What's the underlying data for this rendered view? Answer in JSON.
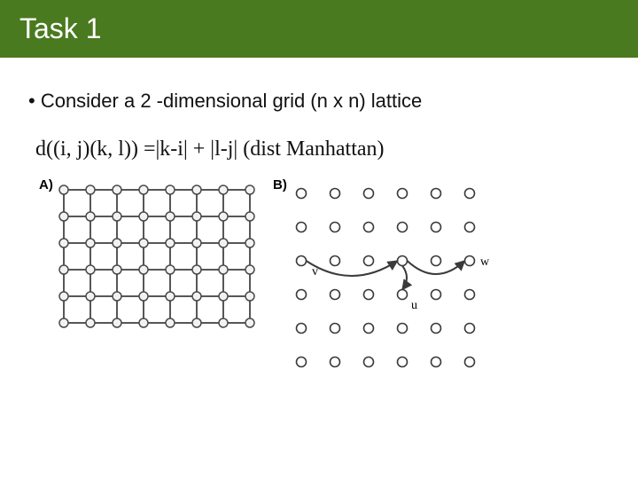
{
  "title": "Task 1",
  "bullet": "• Consider a 2 -dimensional grid (n x n) lattice",
  "formula": "d((i, j)(k, l)) =|k-i| +  |l-j|  (dist Manhattan)",
  "figA": {
    "label": "A)",
    "rows": 6,
    "cols": 8,
    "cell": 30,
    "node_r": 5,
    "node_fill": "#f2f2f2",
    "node_stroke": "#4a4a4a",
    "edge_color": "#575757",
    "edge_w": 2
  },
  "figB": {
    "label": "B)",
    "rows": 6,
    "cols": 6,
    "cell": 38,
    "node_r": 5.5,
    "node_fill": "#ffffff",
    "node_stroke": "#3a3a3a",
    "arc_color": "#3a3a3a",
    "arc_w": 2,
    "labels": {
      "v": "v",
      "u": "u",
      "w": "w"
    },
    "label_fontsize": 14
  }
}
